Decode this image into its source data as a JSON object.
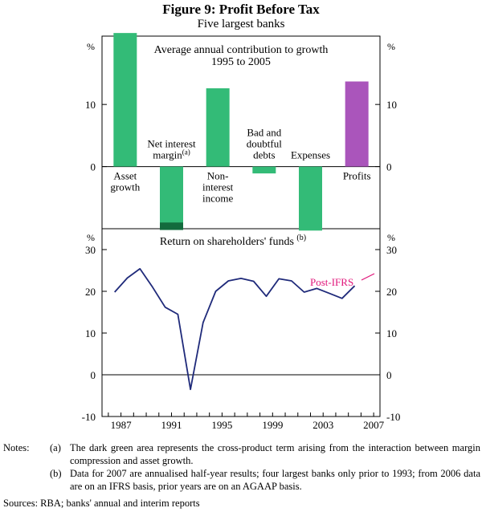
{
  "figure": {
    "title": "Figure 9: Profit Before Tax",
    "subtitle": "Five largest banks"
  },
  "chart_data": [
    {
      "type": "bar",
      "title": "Average annual contribution to growth",
      "subtitle": "1995 to 2005",
      "ylabel_left": "%",
      "ylabel_right": "%",
      "ylim": [
        -10,
        21
      ],
      "yticks": [
        0,
        10
      ],
      "categories": [
        {
          "name": "asset-growth",
          "label": [
            "Asset",
            "growth"
          ],
          "value": 21.5,
          "color": "#33bb77"
        },
        {
          "name": "net-interest-margin",
          "label": [
            "Net interest",
            "margin"
          ],
          "footnote": "(a)",
          "value": -10.2,
          "cross_product_term": -1.2,
          "color": "#33bb77",
          "cross_product_color": "#136b3d"
        },
        {
          "name": "non-interest-income",
          "label": [
            "Non-",
            "interest",
            "income"
          ],
          "value": 12.6,
          "color": "#33bb77"
        },
        {
          "name": "bad-and-doubtful-debts",
          "label": [
            "Bad and",
            "doubtful",
            "debts"
          ],
          "value": -1.1,
          "color": "#33bb77"
        },
        {
          "name": "expenses",
          "label": [
            "Expenses"
          ],
          "value": -10.3,
          "color": "#33bb77"
        },
        {
          "name": "profits",
          "label": [
            "Profits"
          ],
          "value": 13.7,
          "color": "#aa55bb"
        }
      ]
    },
    {
      "type": "line",
      "title": "Return on shareholders' funds",
      "footnote": "(b)",
      "ylabel_left": "%",
      "ylabel_right": "%",
      "ylim": [
        -10,
        35
      ],
      "yticks": [
        -10,
        0,
        10,
        20,
        30
      ],
      "xlim": [
        1985.5,
        2007.5
      ],
      "xticks": [
        1987,
        1991,
        1995,
        1999,
        2003,
        2007
      ],
      "x": [
        1986.5,
        1987.5,
        1988.5,
        1989.5,
        1990.5,
        1991.5,
        1992.5,
        1993.5,
        1994.5,
        1995.5,
        1996.5,
        1997.5,
        1998.5,
        1999.5,
        2000.5,
        2001.5,
        2002.5,
        2003.5,
        2004.5,
        2005.5
      ],
      "y": [
        19.8,
        23.2,
        25.4,
        21.0,
        16.2,
        14.5,
        -3.5,
        12.5,
        20.0,
        22.5,
        23.1,
        22.4,
        18.8,
        23.0,
        22.5,
        19.8,
        20.7,
        19.5,
        18.3,
        21.3
      ],
      "series_color": "#1f2a7a",
      "annotation": {
        "text": "Post-IFRS",
        "color": "#e0157a"
      }
    }
  ],
  "notes": {
    "lead": "Notes:",
    "items": [
      {
        "mark": "(a)",
        "text": "The dark green area represents the cross-product term arising from the interaction between margin compression and asset growth."
      },
      {
        "mark": "(b)",
        "text": "Data for 2007 are annualised half-year results; four largest banks only prior to 1993; from 2006 data are on an IFRS basis, prior years are on an AGAAP basis."
      }
    ]
  },
  "sources": "Sources:  RBA; banks' annual and interim reports"
}
